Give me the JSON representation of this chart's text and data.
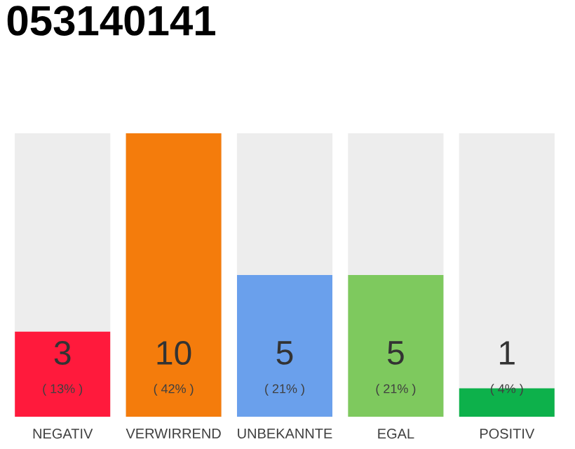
{
  "chart_data": {
    "type": "bar",
    "title": "053140141",
    "categories": [
      "NEGATIV",
      "VERWIRREND",
      "UNBEKANNTE",
      "EGAL",
      "POSITIV"
    ],
    "values": [
      3,
      10,
      5,
      5,
      1
    ],
    "colors": [
      "#ff1a3c",
      "#f47c0c",
      "#6aa0ec",
      "#7ec95e",
      "#0db14b"
    ],
    "data_labels": true,
    "annotations": [
      "( 13% )",
      "( 42% )",
      "( 21% )",
      "( 21% )",
      "( 4% )"
    ]
  }
}
